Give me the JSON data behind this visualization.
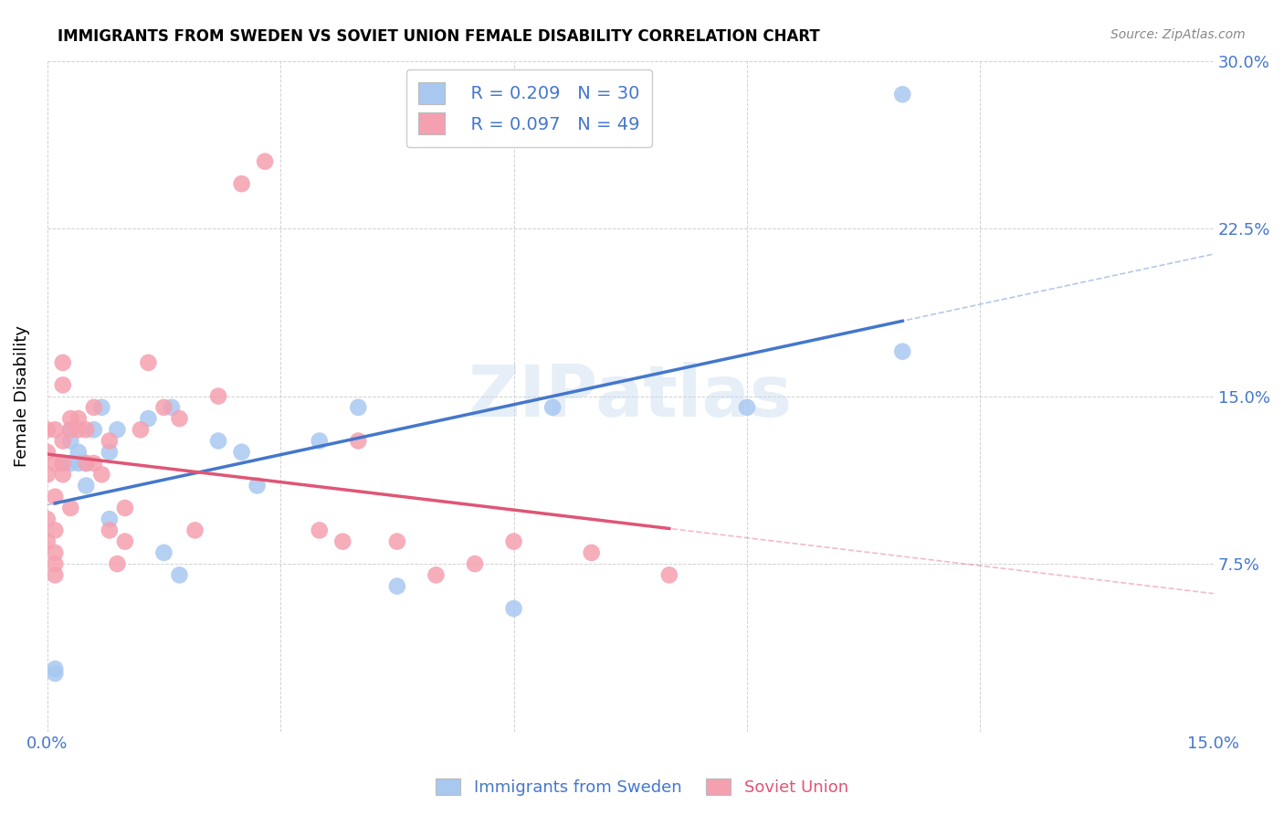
{
  "title": "IMMIGRANTS FROM SWEDEN VS SOVIET UNION FEMALE DISABILITY CORRELATION CHART",
  "source": "Source: ZipAtlas.com",
  "ylabel": "Female Disability",
  "xlim": [
    0.0,
    0.15
  ],
  "ylim": [
    0.0,
    0.3
  ],
  "xticks": [
    0.0,
    0.03,
    0.06,
    0.09,
    0.12,
    0.15
  ],
  "yticks": [
    0.0,
    0.075,
    0.15,
    0.225,
    0.3
  ],
  "sweden_color": "#a8c8f0",
  "soviet_color": "#f5a0b0",
  "sweden_line_color": "#4477cc",
  "soviet_line_color": "#e05575",
  "legend_r_sweden": "R = 0.209",
  "legend_n_sweden": "N = 30",
  "legend_r_soviet": "R = 0.097",
  "legend_n_soviet": "N = 49",
  "watermark": "ZIPatlas",
  "sweden_x": [
    0.001,
    0.001,
    0.002,
    0.003,
    0.003,
    0.003,
    0.004,
    0.004,
    0.005,
    0.005,
    0.006,
    0.007,
    0.008,
    0.008,
    0.009,
    0.013,
    0.015,
    0.016,
    0.017,
    0.022,
    0.025,
    0.027,
    0.035,
    0.04,
    0.045,
    0.06,
    0.065,
    0.09,
    0.11,
    0.11
  ],
  "sweden_y": [
    0.026,
    0.028,
    0.12,
    0.12,
    0.135,
    0.13,
    0.125,
    0.12,
    0.12,
    0.11,
    0.135,
    0.145,
    0.125,
    0.095,
    0.135,
    0.14,
    0.08,
    0.145,
    0.07,
    0.13,
    0.125,
    0.11,
    0.13,
    0.145,
    0.065,
    0.055,
    0.145,
    0.145,
    0.17,
    0.285
  ],
  "soviet_x": [
    0.0,
    0.0,
    0.0,
    0.0,
    0.0,
    0.001,
    0.001,
    0.001,
    0.001,
    0.001,
    0.001,
    0.001,
    0.002,
    0.002,
    0.002,
    0.002,
    0.002,
    0.003,
    0.003,
    0.003,
    0.004,
    0.004,
    0.005,
    0.005,
    0.006,
    0.006,
    0.007,
    0.008,
    0.008,
    0.009,
    0.01,
    0.01,
    0.012,
    0.013,
    0.015,
    0.017,
    0.019,
    0.022,
    0.025,
    0.028,
    0.035,
    0.038,
    0.04,
    0.045,
    0.05,
    0.055,
    0.06,
    0.07,
    0.08
  ],
  "soviet_y": [
    0.135,
    0.125,
    0.115,
    0.095,
    0.085,
    0.135,
    0.12,
    0.105,
    0.09,
    0.08,
    0.075,
    0.07,
    0.165,
    0.155,
    0.13,
    0.12,
    0.115,
    0.14,
    0.135,
    0.1,
    0.14,
    0.135,
    0.135,
    0.12,
    0.145,
    0.12,
    0.115,
    0.13,
    0.09,
    0.075,
    0.1,
    0.085,
    0.135,
    0.165,
    0.145,
    0.14,
    0.09,
    0.15,
    0.245,
    0.255,
    0.09,
    0.085,
    0.13,
    0.085,
    0.07,
    0.075,
    0.085,
    0.08,
    0.07
  ]
}
